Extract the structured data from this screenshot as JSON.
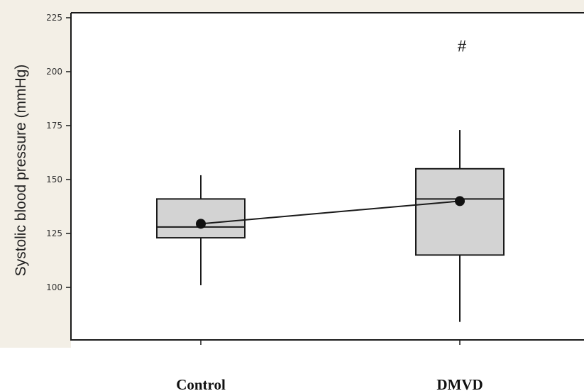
{
  "chart_data": {
    "type": "box",
    "title": "",
    "xlabel": "",
    "ylabel": "Systolic blood pressure (mmHg)",
    "ylim": [
      75,
      225
    ],
    "yticks": [
      100,
      125,
      150,
      175,
      200,
      225
    ],
    "categories": [
      "Control",
      "DMVD"
    ],
    "boxes": [
      {
        "category": "Control",
        "whisker_low": 101,
        "q1": 123,
        "median": 128,
        "q3": 141,
        "whisker_high": 152,
        "mean": 129.5
      },
      {
        "category": "DMVD",
        "whisker_low": 84,
        "q1": 115,
        "median": 141,
        "q3": 155,
        "whisker_high": 173,
        "mean": 140
      }
    ],
    "mean_line": true,
    "annotations": [
      {
        "text": "#",
        "category": "DMVD",
        "y": 212
      }
    ],
    "grid": false,
    "legend": "none",
    "colors": {
      "box_fill": "#d3d3d3",
      "stroke": "#1a1a1a",
      "page_band": "#f3efe6",
      "plot_bg": "#ffffff"
    }
  }
}
